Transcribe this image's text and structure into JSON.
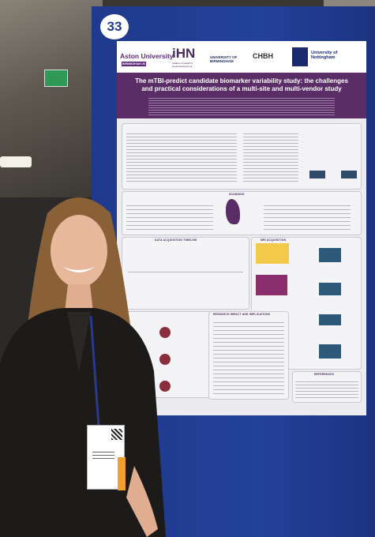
{
  "board_number": "33",
  "logos": {
    "aston": "Aston University",
    "aston_sub": "BIRMINGHAM UK",
    "ihn": "iHN",
    "ihn_sub": "Institute of Health & Neurodevelopment",
    "birmingham": "UNIVERSITY OF BIRMINGHAM",
    "chbh": "CHBH",
    "nottingham": "University of Nottingham"
  },
  "poster": {
    "title": "The mTBI-predict candidate biomarker variability study: the challenges and practical considerations of a multi-site and multi-vendor study",
    "sections": {
      "scanning": "SCANNING",
      "timeline": "DATA ACQUISITION TIMELINE",
      "mri": "MRI ACQUISITION",
      "impact": "RESEARCH IMPACT AND IMPLICATIONS",
      "references": "REFERENCES"
    }
  }
}
